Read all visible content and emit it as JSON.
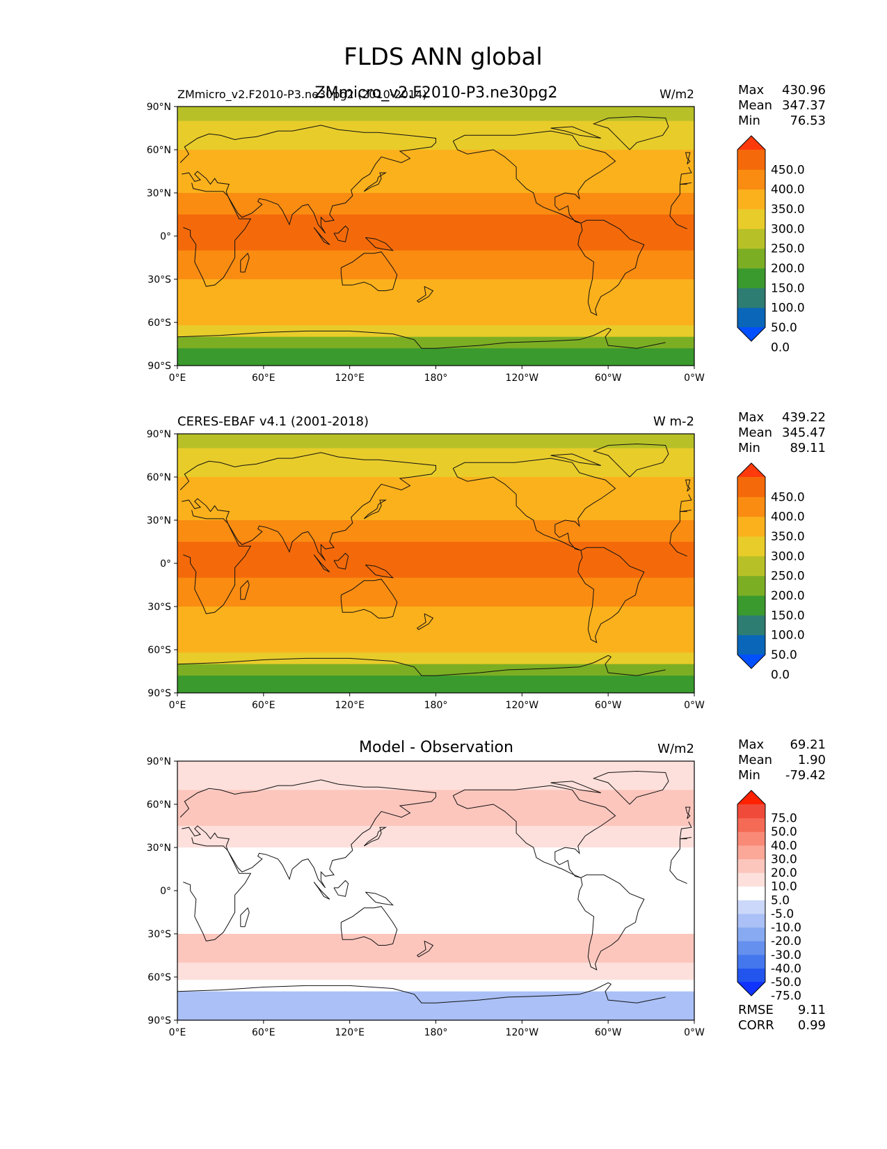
{
  "figure": {
    "title": "FLDS ANN global"
  },
  "chart_data": [
    {
      "type": "heatmap",
      "id": "test",
      "center_title": "ZMmicro_v2.F2010-P3.ne30pg2",
      "left_title": "ZMmicro_v2.F2010-P3.ne30pg2 (2010-2014)",
      "units": "W/m2",
      "stats": [
        {
          "label": "Max",
          "value": "430.96"
        },
        {
          "label": "Mean",
          "value": "347.37"
        },
        {
          "label": "Min",
          "value": "76.53"
        }
      ],
      "colorbar_labels": [
        "450.0",
        "400.0",
        "350.0",
        "300.0",
        "250.0",
        "200.0",
        "150.0",
        "100.0",
        "50.0",
        "0.0"
      ],
      "colorbar_colors": [
        "#0050ff",
        "#0a66b8",
        "#2e7d72",
        "#3a9a2e",
        "#7cae23",
        "#b7c127",
        "#e8cc2a",
        "#fbb11c",
        "#fa8c12",
        "#f46a0a",
        "#fe3a0c"
      ],
      "latitude_bands": [
        {
          "lat_top": 90,
          "lat_bottom": 80,
          "value": 225
        },
        {
          "lat_top": 80,
          "lat_bottom": 70,
          "value": 265
        },
        {
          "lat_top": 70,
          "lat_bottom": 60,
          "value": 285
        },
        {
          "lat_top": 60,
          "lat_bottom": 45,
          "value": 310
        },
        {
          "lat_top": 45,
          "lat_bottom": 30,
          "value": 345
        },
        {
          "lat_top": 30,
          "lat_bottom": 15,
          "value": 380
        },
        {
          "lat_top": 15,
          "lat_bottom": -10,
          "value": 415
        },
        {
          "lat_top": -10,
          "lat_bottom": -30,
          "value": 375
        },
        {
          "lat_top": -30,
          "lat_bottom": -50,
          "value": 340
        },
        {
          "lat_top": -50,
          "lat_bottom": -62,
          "value": 310
        },
        {
          "lat_top": -62,
          "lat_bottom": -70,
          "value": 265
        },
        {
          "lat_top": -70,
          "lat_bottom": -78,
          "value": 180
        },
        {
          "lat_top": -78,
          "lat_bottom": -90,
          "value": 110
        }
      ]
    },
    {
      "type": "heatmap",
      "id": "reference",
      "center_title": "",
      "left_title": "CERES-EBAF v4.1 (2001-2018)",
      "units": "W m-2",
      "stats": [
        {
          "label": "Max",
          "value": "439.22"
        },
        {
          "label": "Mean",
          "value": "345.47"
        },
        {
          "label": "Min",
          "value": "89.11"
        }
      ],
      "colorbar_labels": [
        "450.0",
        "400.0",
        "350.0",
        "300.0",
        "250.0",
        "200.0",
        "150.0",
        "100.0",
        "50.0",
        "0.0"
      ],
      "colorbar_colors": [
        "#0050ff",
        "#0a66b8",
        "#2e7d72",
        "#3a9a2e",
        "#7cae23",
        "#b7c127",
        "#e8cc2a",
        "#fbb11c",
        "#fa8c12",
        "#f46a0a",
        "#fe3a0c"
      ],
      "latitude_bands": [
        {
          "lat_top": 90,
          "lat_bottom": 80,
          "value": 230
        },
        {
          "lat_top": 80,
          "lat_bottom": 70,
          "value": 260
        },
        {
          "lat_top": 70,
          "lat_bottom": 60,
          "value": 280
        },
        {
          "lat_top": 60,
          "lat_bottom": 45,
          "value": 305
        },
        {
          "lat_top": 45,
          "lat_bottom": 30,
          "value": 345
        },
        {
          "lat_top": 30,
          "lat_bottom": 15,
          "value": 380
        },
        {
          "lat_top": 15,
          "lat_bottom": -10,
          "value": 412
        },
        {
          "lat_top": -10,
          "lat_bottom": -30,
          "value": 372
        },
        {
          "lat_top": -30,
          "lat_bottom": -50,
          "value": 335
        },
        {
          "lat_top": -50,
          "lat_bottom": -62,
          "value": 300
        },
        {
          "lat_top": -62,
          "lat_bottom": -70,
          "value": 255
        },
        {
          "lat_top": -70,
          "lat_bottom": -78,
          "value": 170
        },
        {
          "lat_top": -78,
          "lat_bottom": -90,
          "value": 120
        }
      ]
    },
    {
      "type": "heatmap",
      "id": "difference",
      "center_title": "Model - Observation",
      "left_title": "",
      "units": "W/m2",
      "stats": [
        {
          "label": "Max",
          "value": "69.21"
        },
        {
          "label": "Mean",
          "value": "1.90"
        },
        {
          "label": "Min",
          "value": "-79.42"
        }
      ],
      "extra_stats": [
        {
          "label": "RMSE",
          "value": "9.11"
        },
        {
          "label": "CORR",
          "value": "0.99"
        }
      ],
      "colorbar_labels": [
        "75.0",
        "50.0",
        "40.0",
        "30.0",
        "20.0",
        "10.0",
        "5.0",
        "-5.0",
        "-10.0",
        "-20.0",
        "-30.0",
        "-40.0",
        "-50.0",
        "-75.0"
      ],
      "colorbar_colors": [
        "#1133ff",
        "#2255ee",
        "#4477ee",
        "#6690ee",
        "#88aaf2",
        "#aac0f6",
        "#ccd8fa",
        "#ffffff",
        "#fde0dc",
        "#fcc6bd",
        "#fba899",
        "#f98a77",
        "#f56a55",
        "#f04a3a",
        "#ff2200"
      ],
      "latitude_bands": [
        {
          "lat_top": 90,
          "lat_bottom": 70,
          "value": 8
        },
        {
          "lat_top": 70,
          "lat_bottom": 45,
          "value": 12
        },
        {
          "lat_top": 45,
          "lat_bottom": 30,
          "value": 6
        },
        {
          "lat_top": 30,
          "lat_bottom": -30,
          "value": 0
        },
        {
          "lat_top": -30,
          "lat_bottom": -50,
          "value": 12
        },
        {
          "lat_top": -50,
          "lat_bottom": -62,
          "value": 8
        },
        {
          "lat_top": -62,
          "lat_bottom": -70,
          "value": 0
        },
        {
          "lat_top": -70,
          "lat_bottom": -90,
          "value": -12
        }
      ]
    }
  ],
  "axes": {
    "y_ticks": [
      "90°N",
      "60°N",
      "30°N",
      "0°",
      "30°S",
      "60°S",
      "90°S"
    ],
    "x_ticks": [
      "0°E",
      "60°E",
      "120°E",
      "180°",
      "120°W",
      "60°W",
      "0°W"
    ]
  }
}
